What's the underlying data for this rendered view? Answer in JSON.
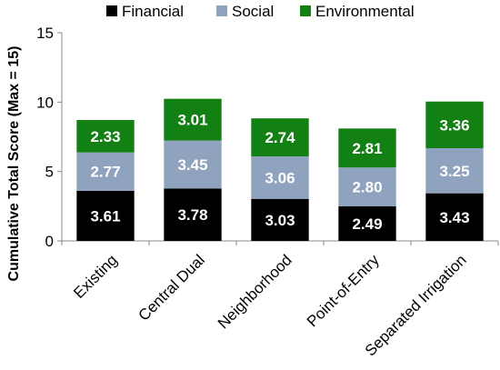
{
  "chart_data": {
    "type": "bar",
    "stacked": true,
    "categories": [
      "Existing",
      "Central Dual",
      "Neighborhood",
      "Point-of-Entry",
      "Separated Irrigation"
    ],
    "series": [
      {
        "name": "Financial",
        "color": "#000000",
        "values": [
          3.61,
          3.78,
          3.03,
          2.49,
          3.43
        ],
        "labels": [
          "3.61",
          "3.78",
          "3.03",
          "2.49",
          "3.43"
        ]
      },
      {
        "name": "Social",
        "color": "#8fa3be",
        "values": [
          2.77,
          3.45,
          3.06,
          2.8,
          3.25
        ],
        "labels": [
          "2.77",
          "3.45",
          "3.06",
          "2.80",
          "3.25"
        ]
      },
      {
        "name": "Environmental",
        "color": "#128012",
        "values": [
          2.33,
          3.01,
          2.74,
          2.81,
          3.36
        ],
        "labels": [
          "2.33",
          "3.01",
          "2.74",
          "2.81",
          "3.36"
        ]
      }
    ],
    "ylabel": "Cumulative Total Score (Max = 15)",
    "xlabel": "",
    "ylim": [
      0,
      15
    ],
    "yticks": [
      0,
      5,
      10,
      15
    ],
    "ytick_labels": [
      "0",
      "5",
      "10",
      "15"
    ],
    "grid": false,
    "legend_position": "top"
  }
}
